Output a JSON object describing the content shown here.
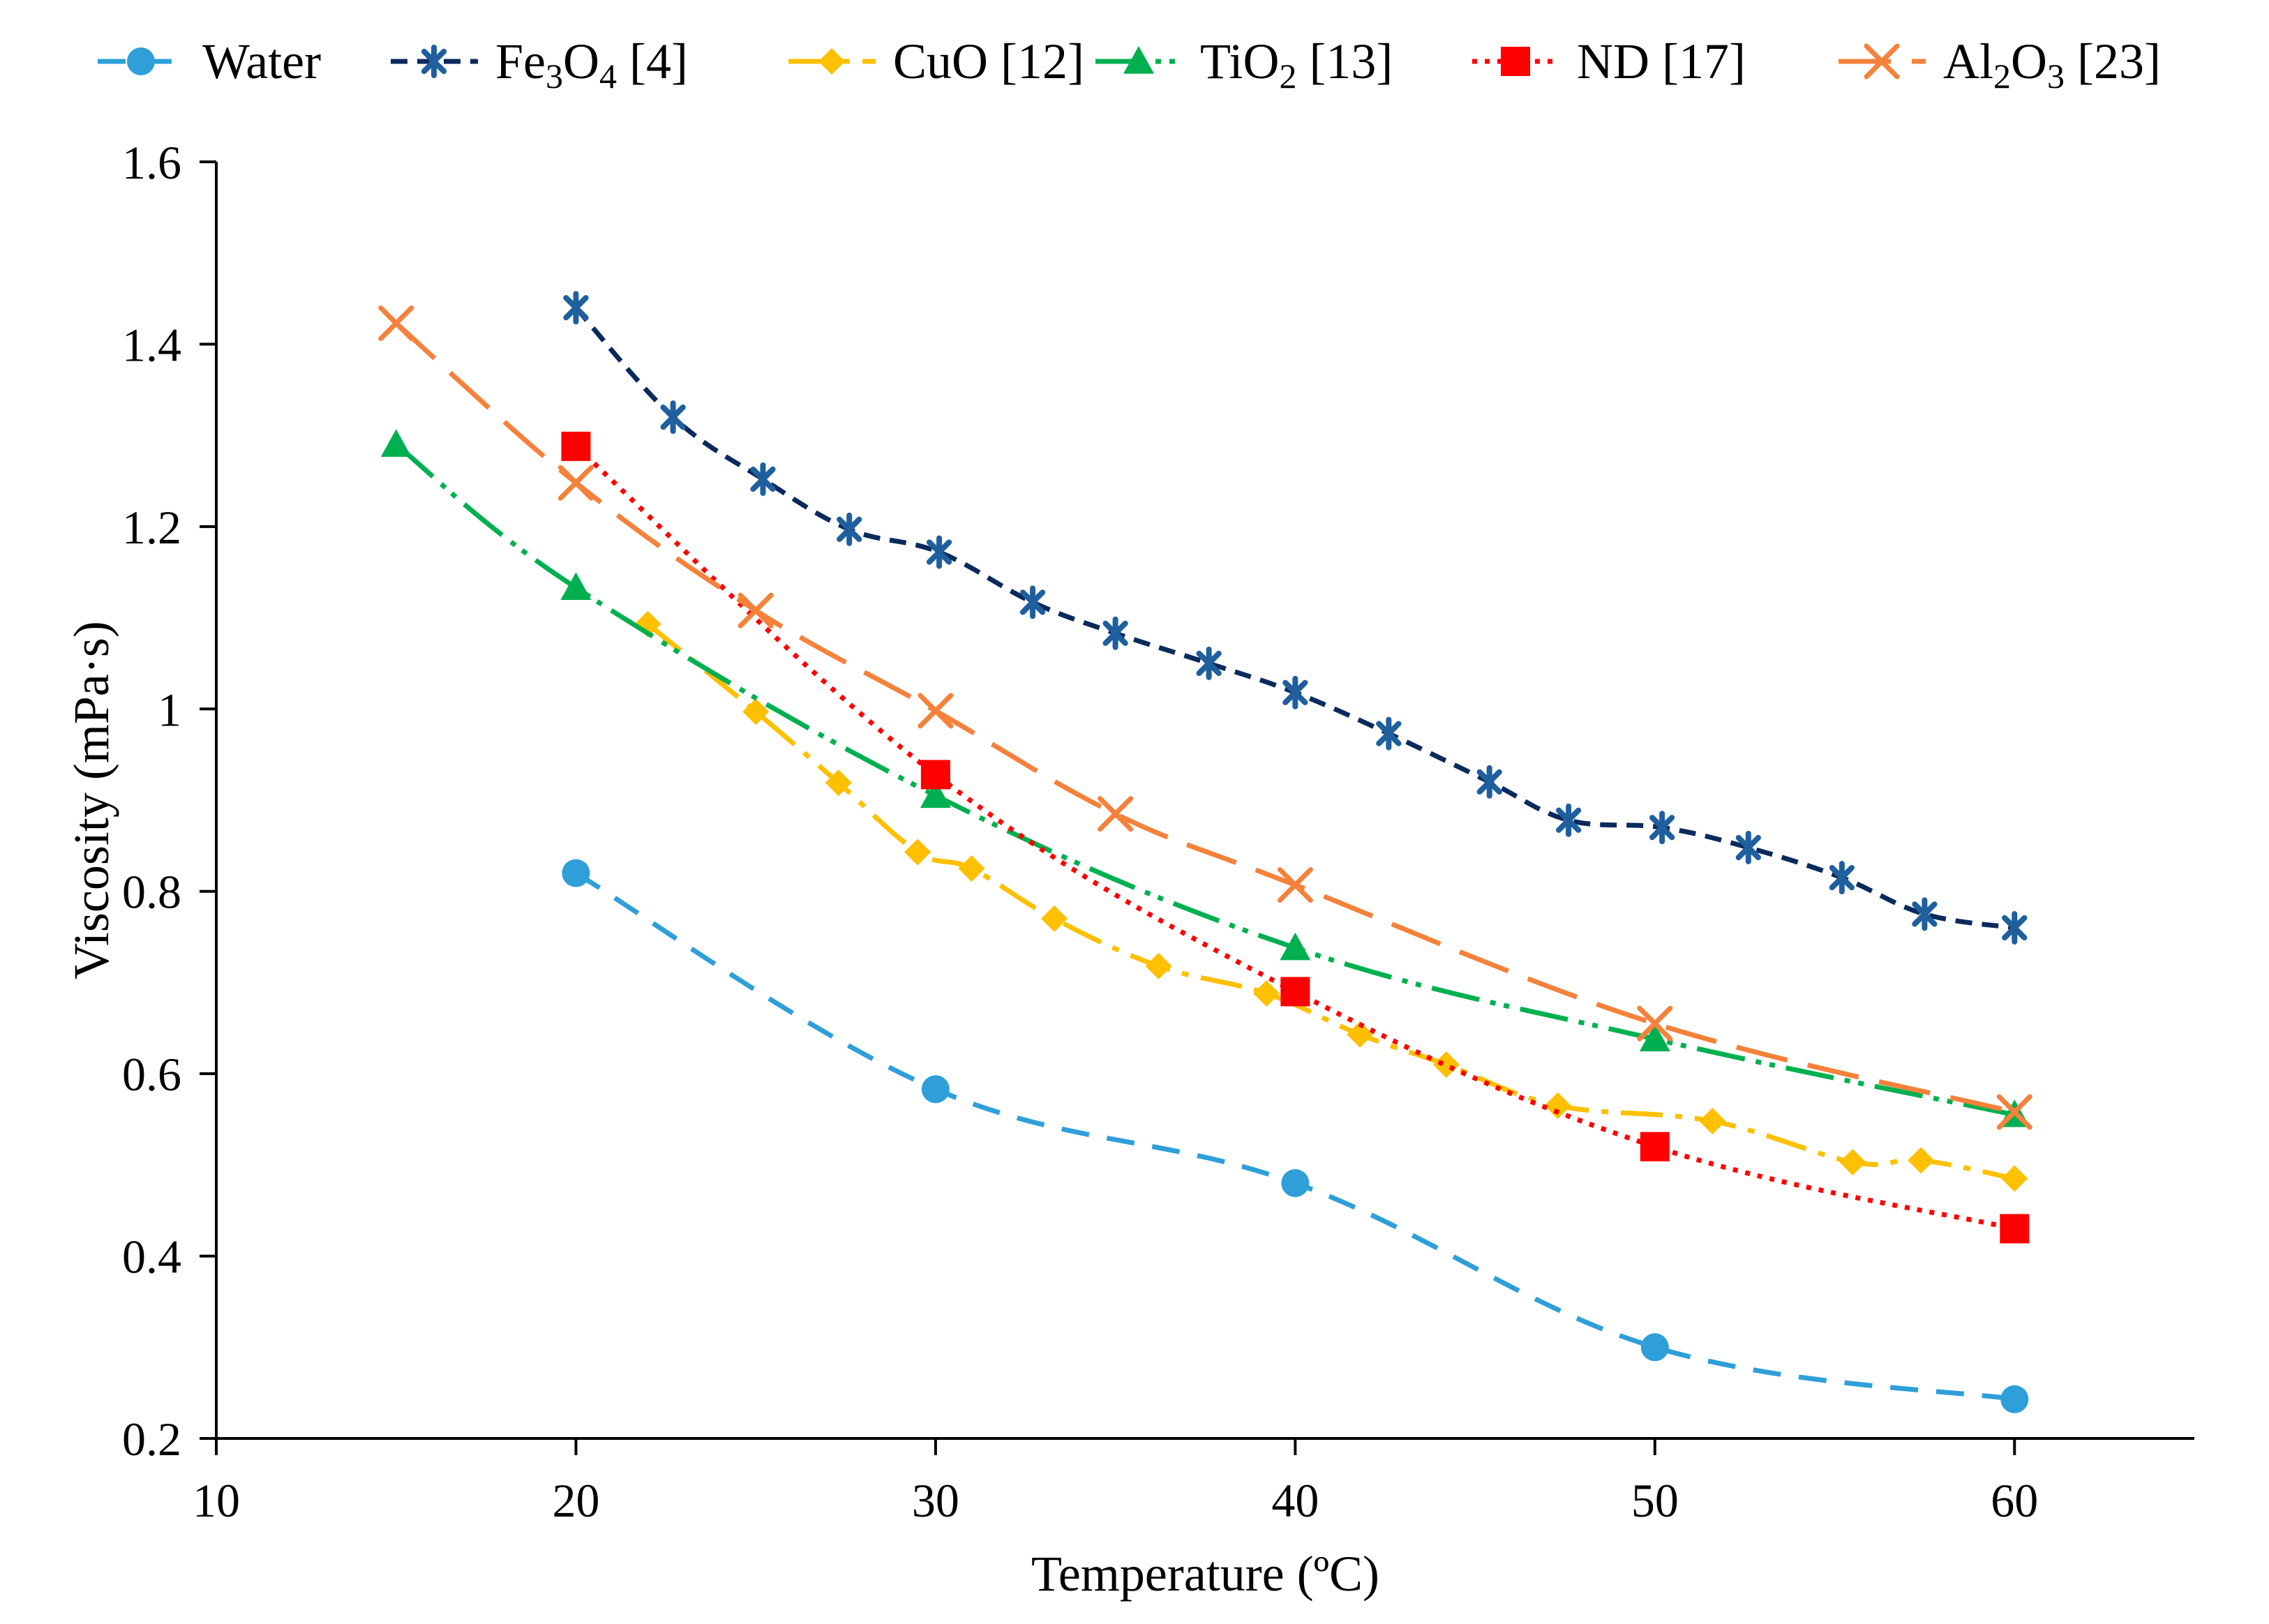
{
  "chart_data": {
    "type": "line",
    "title": "",
    "xlabel": "Temperature (ºC)",
    "ylabel": "Viscosity (mPa·s)",
    "xlim": [
      10,
      65
    ],
    "ylim": [
      0.2,
      1.6
    ],
    "xticks": [
      10,
      20,
      30,
      40,
      50,
      60
    ],
    "yticks": [
      0.2,
      0.4,
      0.6,
      0.8,
      1,
      1.2,
      1.4,
      1.6
    ],
    "xtick_labels": [
      "10",
      "20",
      "30",
      "40",
      "50",
      "60"
    ],
    "ytick_labels": [
      "0.2",
      "0.4",
      "0.6",
      "0.8",
      "1",
      "1.2",
      "1.4",
      "1.6"
    ],
    "grid": false,
    "legend_position": "top",
    "series": [
      {
        "name": "Water",
        "legend_parts": [
          [
            "Water",
            ""
          ]
        ],
        "color": "#2E9FD9",
        "marker": "circle",
        "dash": "40,26",
        "x": [
          20,
          30,
          40,
          50,
          60
        ],
        "y": [
          0.82,
          0.583,
          0.48,
          0.3,
          0.243
        ]
      },
      {
        "name": "Fe3O4 [4]",
        "legend_parts": [
          [
            "Fe",
            ""
          ],
          [
            "3",
            "sub"
          ],
          [
            "O",
            ""
          ],
          [
            "4",
            "sub"
          ],
          [
            " [4]",
            ""
          ]
        ],
        "color": "#0B2A5C",
        "marker_color": "#1F5F9E",
        "marker": "star",
        "dash": "24,14",
        "x": [
          20,
          22.7,
          25.2,
          27.6,
          30.1,
          32.7,
          35,
          37.6,
          40,
          42.6,
          45.4,
          47.6,
          50.2,
          52.6,
          55.2,
          57.5,
          60
        ],
        "y": [
          1.44,
          1.32,
          1.252,
          1.197,
          1.172,
          1.117,
          1.083,
          1.05,
          1.018,
          0.973,
          0.92,
          0.878,
          0.87,
          0.848,
          0.815,
          0.775,
          0.76
        ]
      },
      {
        "name": "CuO [12]",
        "legend_parts": [
          [
            "CuO [12]",
            ""
          ]
        ],
        "color": "#FFC000",
        "marker": "diamond",
        "dash": "60,18,10,18",
        "x": [
          22,
          25,
          27.3,
          29.5,
          31,
          33.3,
          36.2,
          39.2,
          41.8,
          44.2,
          47.3,
          51.6,
          55.5,
          57.4,
          60
        ],
        "y": [
          1.093,
          0.997,
          0.919,
          0.843,
          0.825,
          0.77,
          0.718,
          0.688,
          0.643,
          0.61,
          0.565,
          0.548,
          0.503,
          0.505,
          0.485
        ]
      },
      {
        "name": "TiO2 [13]",
        "legend_parts": [
          [
            "TiO",
            ""
          ],
          [
            "2",
            "sub"
          ],
          [
            " [13]",
            ""
          ]
        ],
        "color": "#00B050",
        "marker": "triangle",
        "dash": "70,16,8,12,8,16",
        "x": [
          15,
          20,
          30,
          40,
          50,
          60
        ],
        "y": [
          1.29,
          1.133,
          0.905,
          0.738,
          0.638,
          0.555
        ]
      },
      {
        "name": "ND [17]",
        "legend_parts": [
          [
            "ND [17]",
            ""
          ]
        ],
        "color": "#FF0000",
        "marker": "square",
        "dash": "7,11",
        "x": [
          20,
          30,
          40,
          50,
          60
        ],
        "y": [
          1.288,
          0.928,
          0.69,
          0.52,
          0.43
        ]
      },
      {
        "name": "Al2O3 [23]",
        "legend_parts": [
          [
            "Al",
            ""
          ],
          [
            "2",
            "sub"
          ],
          [
            "O",
            ""
          ],
          [
            "3",
            "sub"
          ],
          [
            " [23]",
            ""
          ]
        ],
        "color": "#F5813A",
        "marker": "x",
        "dash": "75,30",
        "x": [
          15,
          20,
          25,
          30,
          35,
          40,
          50,
          60
        ],
        "y": [
          1.423,
          1.248,
          1.108,
          0.998,
          0.885,
          0.807,
          0.655,
          0.558
        ]
      }
    ]
  }
}
